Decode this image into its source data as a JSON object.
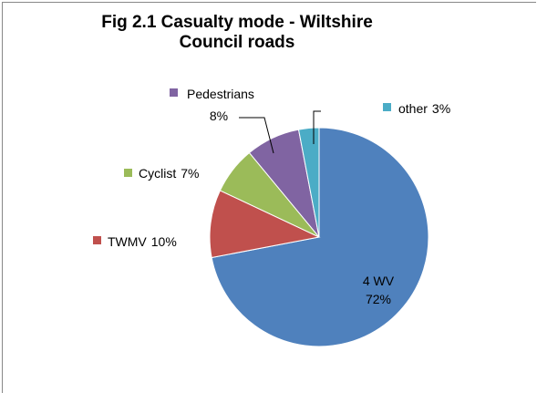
{
  "chart_data": {
    "type": "pie",
    "title": "Fig 2.1 Casualty mode - Wiltshire Council roads",
    "categories": [
      "4 WV",
      "TWMV",
      "Cyclist",
      "Pedestrians",
      "other"
    ],
    "values": [
      72,
      10,
      7,
      8,
      3
    ],
    "value_labels": [
      "72%",
      "10%",
      "7%",
      "8%",
      "3%"
    ],
    "colors": [
      "#4f81bd",
      "#c0504d",
      "#9bbb59",
      "#8064a2",
      "#4bacc6"
    ]
  }
}
